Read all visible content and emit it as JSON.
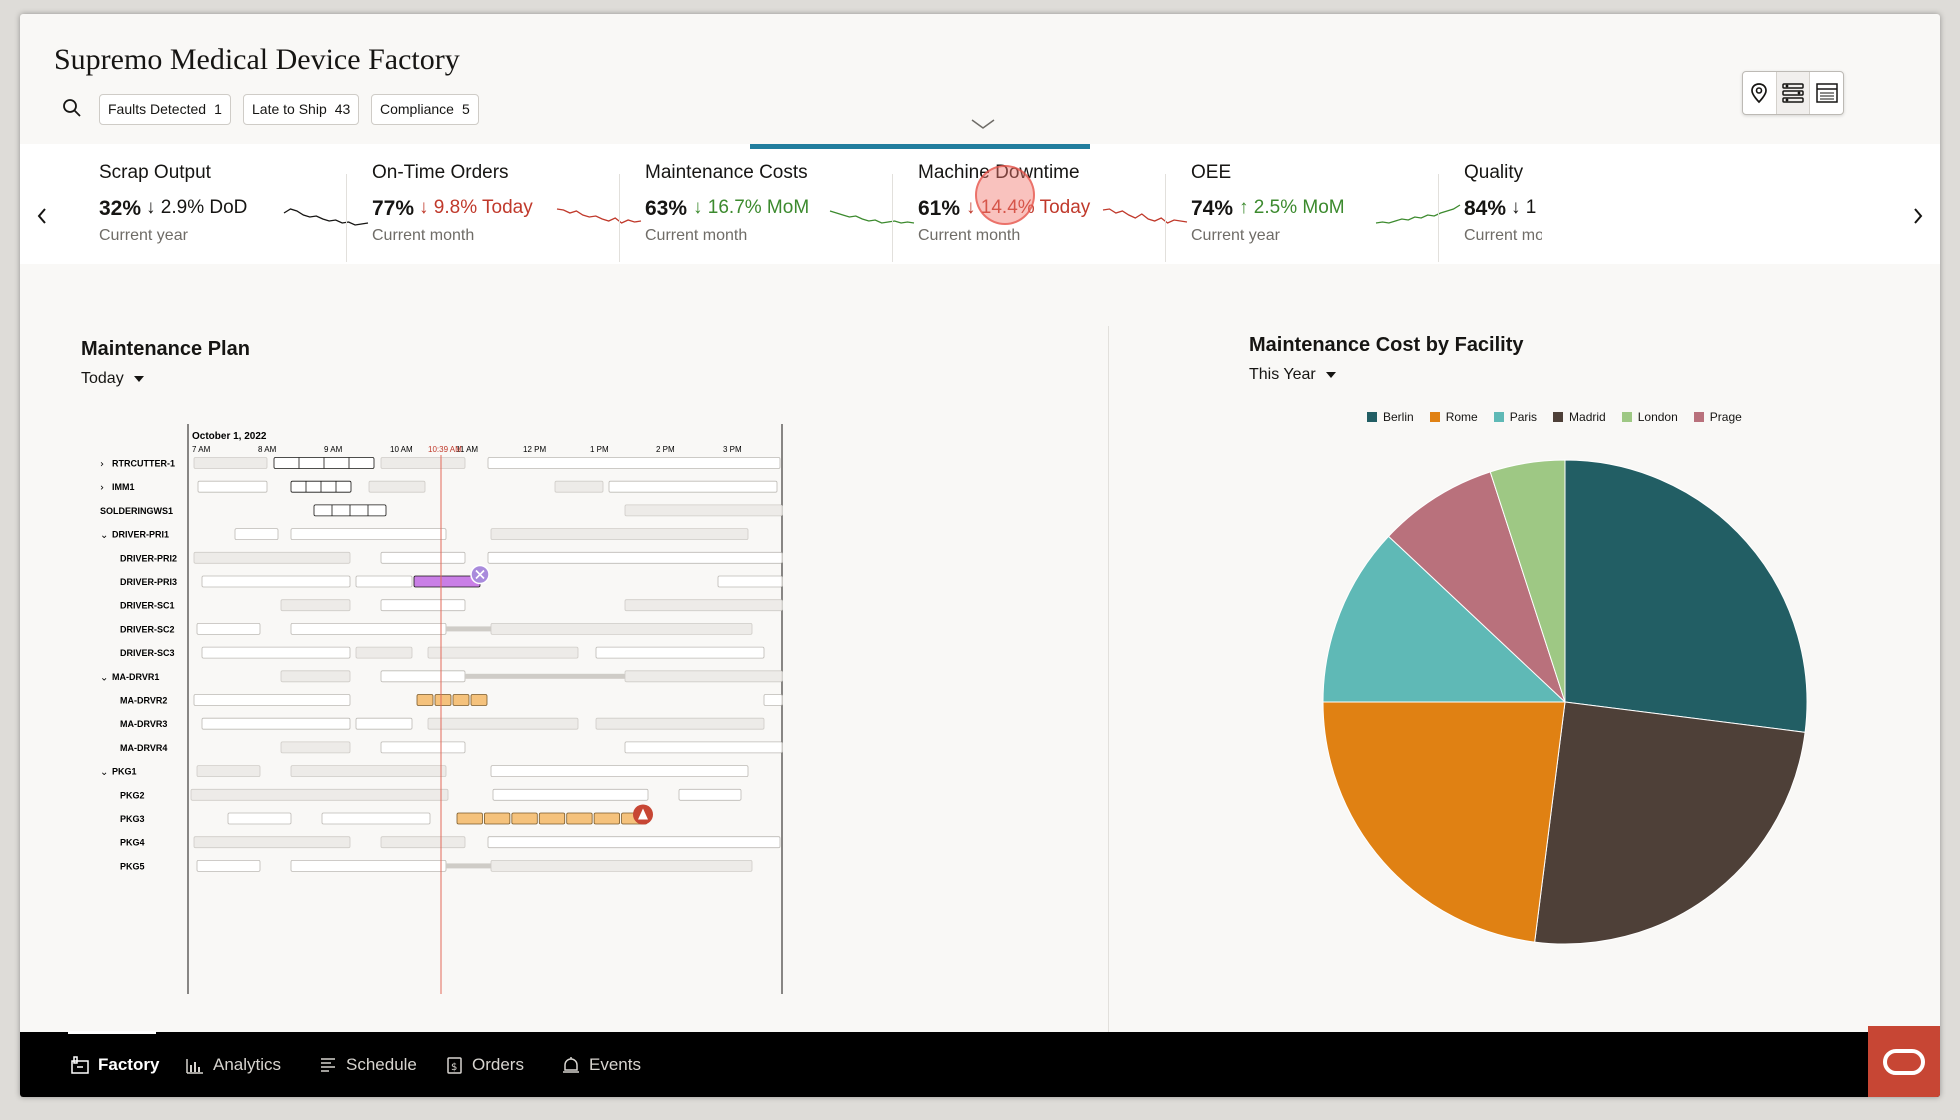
{
  "app": {
    "title": "Supremo Medical Device Factory"
  },
  "filters": [
    {
      "label": "Faults Detected",
      "count": "1"
    },
    {
      "label": "Late to Ship",
      "count": "43"
    },
    {
      "label": "Compliance",
      "count": "5"
    }
  ],
  "view_buttons": [
    "map-pin-icon",
    "list-view-icon",
    "table-view-icon"
  ],
  "kpis": [
    {
      "title": "Scrap Output",
      "value": "32%",
      "change": "↓ 2.9% DoD",
      "period": "Current year",
      "change_color": "#161513",
      "spark_color": "#161513",
      "trend": [
        12,
        8,
        10,
        14,
        16,
        15,
        18,
        20,
        19,
        22,
        21,
        24,
        23,
        22
      ]
    },
    {
      "title": "On-Time Orders",
      "value": "77%",
      "change": "↓ 9.8% Today",
      "period": "Current month",
      "change_color": "#c0392b",
      "spark_color": "#c0392b",
      "trend": [
        8,
        9,
        12,
        10,
        14,
        16,
        15,
        18,
        20,
        17,
        22,
        19,
        21,
        20
      ]
    },
    {
      "title": "Maintenance Costs",
      "value": "63%",
      "change": "↓ 16.7% MoM",
      "period": "Current month",
      "change_color": "#3c8a2e",
      "spark_color": "#3c8a2e",
      "trend": [
        10,
        12,
        14,
        16,
        15,
        18,
        20,
        19,
        22,
        21,
        20,
        22,
        21,
        22
      ]
    },
    {
      "title": "Machine Downtime",
      "value": "61%",
      "change": "↓ 14.4% Today",
      "period": "Current month",
      "change_color": "#c0392b",
      "spark_color": "#c0392b",
      "trend": [
        9,
        8,
        12,
        10,
        14,
        17,
        13,
        18,
        20,
        17,
        22,
        19,
        20,
        21
      ]
    },
    {
      "title": "OEE",
      "value": "74%",
      "change": "↑ 2.5% MoM",
      "period": "Current year",
      "change_color": "#3c8a2e",
      "spark_color": "#3c8a2e",
      "trend": [
        22,
        21,
        22,
        20,
        18,
        19,
        16,
        17,
        14,
        15,
        12,
        10,
        8,
        4
      ]
    },
    {
      "title": "Quality",
      "value": "84%",
      "change": "↓ 1",
      "period": "Current mor",
      "change_color": "#161513",
      "spark_color": "#161513",
      "trend": []
    }
  ],
  "maintenance_plan": {
    "title": "Maintenance Plan",
    "filter": "Today",
    "date": "October 1, 2022",
    "time_labels": [
      "7 AM",
      "8 AM",
      "9 AM",
      "10 AM",
      "11 AM",
      "12 PM",
      "1 PM",
      "2 PM",
      "3 PM"
    ],
    "current_time_label": "10:39 AM",
    "rows": [
      {
        "name": "RTRCUTTER-1",
        "indent": 1,
        "toggle": "›"
      },
      {
        "name": "IMM1",
        "indent": 1,
        "toggle": "›"
      },
      {
        "name": "SOLDERINGWS1",
        "indent": 0,
        "toggle": ""
      },
      {
        "name": "DRIVER-PRI1",
        "indent": 1,
        "toggle": "⌄"
      },
      {
        "name": "DRIVER-PRI2",
        "indent": 2,
        "toggle": ""
      },
      {
        "name": "DRIVER-PRI3",
        "indent": 2,
        "toggle": ""
      },
      {
        "name": "DRIVER-SC1",
        "indent": 2,
        "toggle": ""
      },
      {
        "name": "DRIVER-SC2",
        "indent": 2,
        "toggle": ""
      },
      {
        "name": "DRIVER-SC3",
        "indent": 2,
        "toggle": ""
      },
      {
        "name": "MA-DRVR1",
        "indent": 1,
        "toggle": "⌄"
      },
      {
        "name": "MA-DRVR2",
        "indent": 2,
        "toggle": ""
      },
      {
        "name": "MA-DRVR3",
        "indent": 2,
        "toggle": ""
      },
      {
        "name": "MA-DRVR4",
        "indent": 2,
        "toggle": ""
      },
      {
        "name": "PKG1",
        "indent": 1,
        "toggle": "⌄"
      },
      {
        "name": "PKG2",
        "indent": 2,
        "toggle": ""
      },
      {
        "name": "PKG3",
        "indent": 2,
        "toggle": ""
      },
      {
        "name": "PKG4",
        "indent": 2,
        "toggle": ""
      },
      {
        "name": "PKG5",
        "indent": 2,
        "toggle": ""
      }
    ]
  },
  "cost_chart": {
    "title": "Maintenance Cost by Facility",
    "filter": "This Year"
  },
  "chart_data": {
    "type": "pie",
    "categories": [
      "Berlin",
      "Rome",
      "Paris",
      "Madrid",
      "London",
      "Prage"
    ],
    "values": [
      27,
      23,
      12,
      25,
      5,
      8
    ],
    "order_clockwise_from_top": [
      "Berlin",
      "Madrid",
      "Rome",
      "Paris",
      "Prage",
      "London"
    ],
    "colors": [
      "#225e64",
      "#e08113",
      "#5fb9b6",
      "#4e4038",
      "#9ec884",
      "#b9717c"
    ],
    "legend": "top"
  },
  "nav": [
    {
      "label": "Factory",
      "icon": "factory-icon"
    },
    {
      "label": "Analytics",
      "icon": "analytics-icon"
    },
    {
      "label": "Schedule",
      "icon": "schedule-icon"
    },
    {
      "label": "Orders",
      "icon": "orders-icon"
    },
    {
      "label": "Events",
      "icon": "events-icon"
    }
  ],
  "colors": {
    "accent": "#227e9e",
    "oracle": "#c74634",
    "planned": "#f5c27c",
    "active": "#c97fe6"
  }
}
